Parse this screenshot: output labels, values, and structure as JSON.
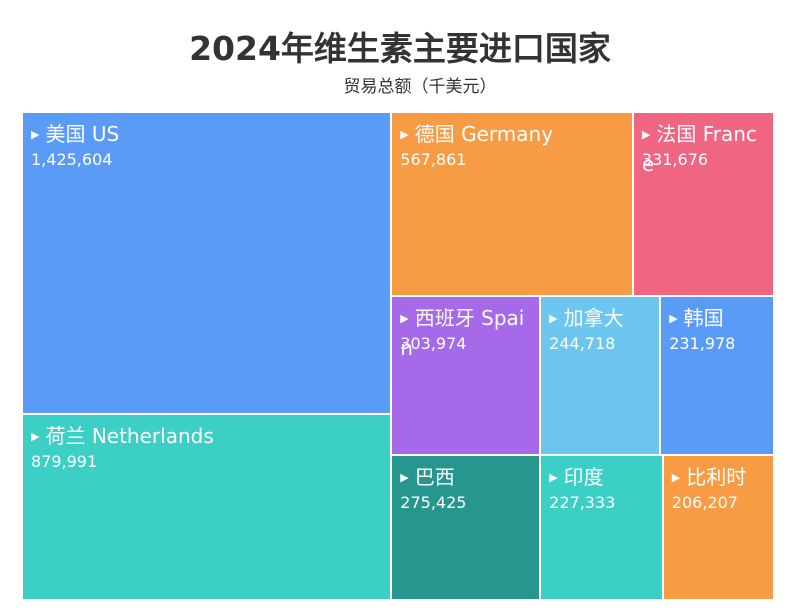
{
  "title": "2024年维生素主要进口国家",
  "subtitle": "贸易总额（千美元）",
  "chart_data": {
    "type": "treemap",
    "title": "2024年维生素主要进口国家",
    "unit_label": "贸易总额（千美元）",
    "items": [
      {
        "name": "美国  US",
        "value": 1425604,
        "label": "1,425,604",
        "color": "#5b9bf8"
      },
      {
        "name": "荷兰 Netherlands",
        "value": 879991,
        "label": "879,991",
        "color": "#3ccfc5"
      },
      {
        "name": "德国 Germany",
        "value": 567861,
        "label": "567,861",
        "color": "#f79b45"
      },
      {
        "name": "法国 France",
        "value": 331676,
        "label": "331,676",
        "color": "#f06682"
      },
      {
        "name": "西班牙 Spain",
        "value": 303974,
        "label": "303,974",
        "color": "#a569ea"
      },
      {
        "name": "巴西",
        "value": 275425,
        "label": "275,425",
        "color": "#27968f"
      },
      {
        "name": "加拿大",
        "value": 244718,
        "label": "244,718",
        "color": "#6cc6ef"
      },
      {
        "name": "韩国",
        "value": 231978,
        "label": "231,978",
        "color": "#5b9bf8"
      },
      {
        "name": "印度",
        "value": 227333,
        "label": "227,333",
        "color": "#3ccfc5"
      },
      {
        "name": "比利时",
        "value": 206207,
        "label": "206,207",
        "color": "#f79b45"
      }
    ]
  }
}
